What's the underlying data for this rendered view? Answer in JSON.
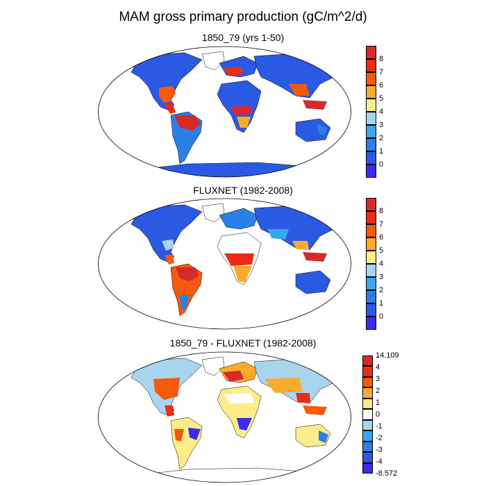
{
  "title": "MAM gross primary production (gC/m^2/d)",
  "panels": [
    {
      "title": "1850_79 (yrs 1-50)",
      "colorbar": {
        "labels": [
          "8",
          "7",
          "6",
          "5",
          "4",
          "3",
          "2",
          "1",
          "0"
        ],
        "colors": [
          "#d62a2a",
          "#ee2b14",
          "#f55a0b",
          "#fbaa2c",
          "#fdec8a",
          "#a7d5ee",
          "#36a8f0",
          "#2a80e8",
          "#2a5ae4",
          "#3b2cf0"
        ]
      }
    },
    {
      "title": "FLUXNET (1982-2008)",
      "colorbar": {
        "labels": [
          "8",
          "7",
          "6",
          "5",
          "4",
          "3",
          "2",
          "1",
          "0"
        ],
        "colors": [
          "#d62a2a",
          "#ee2b14",
          "#f55a0b",
          "#fbaa2c",
          "#fdec8a",
          "#a7d5ee",
          "#36a8f0",
          "#2a80e8",
          "#2a5ae4",
          "#3b2cf0"
        ]
      }
    },
    {
      "title": "1850_79 - FLUXNET (1982-2008)",
      "colorbar": {
        "labels": [
          "14.109",
          "4",
          "3",
          "2",
          "1",
          "0",
          "-1",
          "-2",
          "-3",
          "-4",
          "-8.572"
        ],
        "colors": [
          "#d62a2a",
          "#ee2b14",
          "#f55a0b",
          "#fbaa2c",
          "#fdec8a",
          "#ffffff",
          "#a7d5ee",
          "#36a8f0",
          "#2a80e8",
          "#2a5ae4",
          "#3b2cf0"
        ]
      }
    }
  ]
}
